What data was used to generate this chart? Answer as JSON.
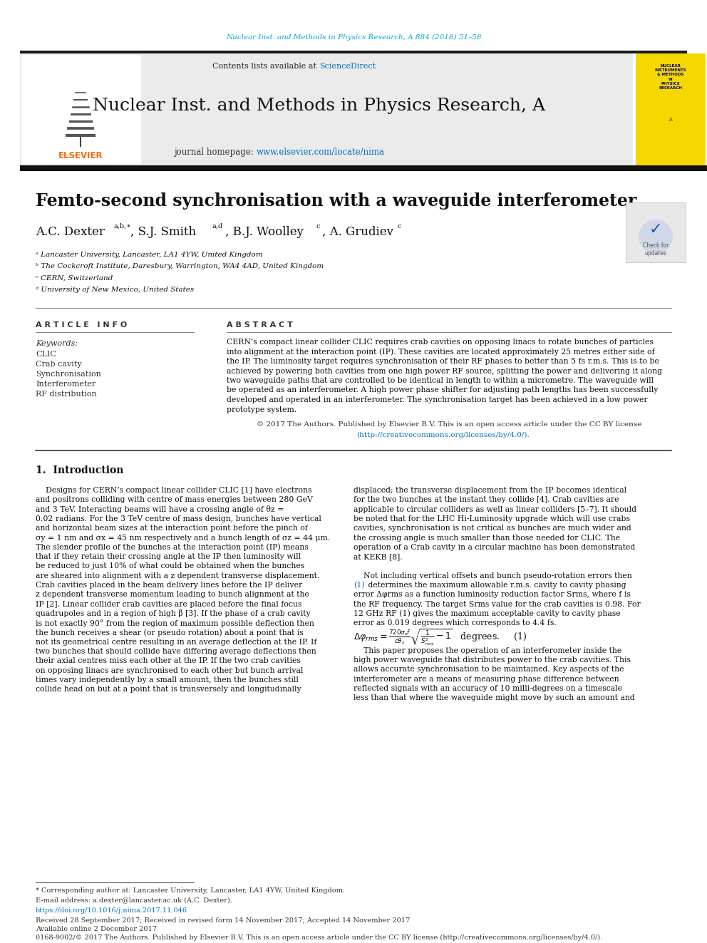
{
  "page_bg": "#ffffff",
  "top_journal_ref": "Nuclear Inst. and Methods in Physics Research, A 884 (2018) 51–58",
  "top_journal_ref_color": "#00aacc",
  "header_journal_name": "Nuclear Inst. and Methods in Physics Research, A",
  "header_contents": "Contents lists available at ",
  "header_sciencedirect": "ScienceDirect",
  "header_sciencedirect_color": "#0070c0",
  "header_homepage": "journal homepage: ",
  "header_url": "www.elsevier.com/locate/nima",
  "header_url_color": "#0070c0",
  "elsevier_color": "#ff6600",
  "title": "Femto-second synchronisation with a waveguide interferometer",
  "affil_a": "ᵃ Lancaster University, Lancaster, LA1 4YW, United Kingdom",
  "affil_b": "ᵇ The Cockcroft Institute, Daresbury, Warrington, WA4 4AD, United Kingdom",
  "affil_c": "ᶜ CERN, Switzerland",
  "affil_d": "ᵈ University of New Mexico, United States",
  "article_info_label": "A R T I C L E   I N F O",
  "abstract_label": "A B S T R A C T",
  "keywords_label": "Keywords:",
  "keywords": [
    "CLIC",
    "Crab cavity",
    "Synchronisation",
    "Interferometer",
    "RF distribution"
  ],
  "copyright_text": "© 2017 The Authors. Published by Elsevier B.V. This is an open access article under the CC BY license",
  "copyright_url": "(http://creativecommons.org/licenses/by/4.0/).",
  "copyright_url_color": "#0070c0",
  "section1_title": "1.  Introduction",
  "footnote_star": "* Corresponding author at: Lancaster University, Lancaster, LA1 4YW, United Kingdom.",
  "footnote_email": "E-mail address: a.dexter@lancaster.ac.uk (A.C. Dexter).",
  "doi": "https://doi.org/10.1016/j.nima.2017.11.046",
  "received": "Received 28 September 2017; Received in revised form 14 November 2017; Accepted 14 November 2017",
  "available": "Available online 2 December 2017",
  "issn_text": "0168-9002/© 2017 The Authors. Published by Elsevier B.V. This is an open access article under the CC BY license (http://creativecommons.org/licenses/by/4.0/).",
  "black_bar_color": "#1a1a1a",
  "abstract_lines": [
    "CERN’s compact linear collider CLIC requires crab cavities on opposing linacs to rotate bunches of particles",
    "into alignment at the interaction point (IP). These cavities are located approximately 25 metres either side of",
    "the IP. The luminosity target requires synchronisation of their RF phases to better than 5 fs r.m.s. This is to be",
    "achieved by powering both cavities from one high power RF source, splitting the power and delivering it along",
    "two waveguide paths that are controlled to be identical in length to within a micrometre. The waveguide will",
    "be operated as an interferometer. A high power phase shifter for adjusting path lengths has been successfully",
    "developed and operated in an interferometer. The synchronisation target has been achieved in a low power",
    "prototype system."
  ],
  "col1_lines": [
    "    Designs for CERN’s compact linear collider CLIC [1] have electrons",
    "and positrons colliding with centre of mass energies between 280 GeV",
    "and 3 TeV. Interacting beams will have a crossing angle of θz =",
    "0.02 radians. For the 3 TeV centre of mass design, bunches have vertical",
    "and horizontal beam sizes at the interaction point before the pinch of",
    "σy = 1 nm and σx = 45 nm respectively and a bunch length of σz = 44 μm.",
    "The slender profile of the bunches at the interaction point (IP) means",
    "that if they retain their crossing angle at the IP then luminosity will",
    "be reduced to just 10% of what could be obtained when the bunches",
    "are sheared into alignment with a z dependent transverse displacement.",
    "Crab cavities placed in the beam delivery lines before the IP deliver",
    "z dependent transverse momentum leading to bunch alignment at the",
    "IP [2]. Linear collider crab cavities are placed before the final focus",
    "quadrupoles and in a region of high β [3]. If the phase of a crab cavity",
    "is not exactly 90° from the region of maximum possible deflection then",
    "the bunch receives a shear (or pseudo rotation) about a point that is",
    "not its geometrical centre resulting in an average deflection at the IP. If",
    "two bunches that should collide have differing average deflections then",
    "their axial centres miss each other at the IP. If the two crab cavities",
    "on opposing linacs are synchronised to each other but bunch arrival",
    "times vary independently by a small amount, then the bunches still",
    "collide head on but at a point that is transversely and longitudinally"
  ],
  "col2_lines_a": [
    "displaced; the transverse displacement from the IP becomes identical",
    "for the two bunches at the instant they collide [4]. Crab cavities are",
    "applicable to circular colliders as well as linear colliders [5–7]. It should",
    "be noted that for the LHC Hi-Luminosity upgrade which will use crabs",
    "cavities, synchronisation is not critical as bunches are much wider and",
    "the crossing angle is much smaller than those needed for CLIC. The",
    "operation of a Crab cavity in a circular machine has been demonstrated",
    "at KEKB [8]."
  ],
  "col2_lines_b_pre": "    Not including vertical offsets and bunch pseudo-rotation errors then",
  "col2_lines_b_ref": "(1)",
  "col2_lines_b_after": " determines the maximum allowable r.m.s. cavity to cavity phasing",
  "col2_lines_c": [
    "error Δφrms as a function luminosity reduction factor Srms, where f is",
    "the RF frequency. The target Srms value for the crab cavities is 0.98. For",
    "12 GHz RF (1) gives the maximum acceptable cavity to cavity phase",
    "error as 0.019 degrees which corresponds to 4.4 fs."
  ],
  "col2_lines_d": [
    "    This paper proposes the operation of an interferometer inside the",
    "high power waveguide that distributes power to the crab cavities. This",
    "allows accurate synchronisation to be maintained. Key aspects of the",
    "interferometer are a means of measuring phase difference between",
    "reflected signals with an accuracy of 10 milli-degrees on a timescale",
    "less than that where the waveguide might move by such an amount and"
  ]
}
